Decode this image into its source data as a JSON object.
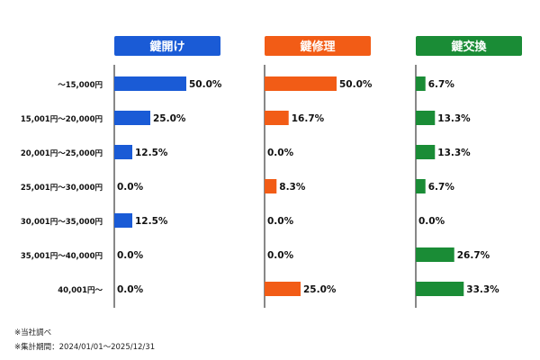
{
  "chart_data": {
    "type": "bar",
    "orientation": "horizontal",
    "categories": [
      "～15,000円",
      "15,001円～20,000円",
      "20,001円～25,000円",
      "25,001円～30,000円",
      "30,001円～35,000円",
      "35,001円～40,000円",
      "40,001円～"
    ],
    "series": [
      {
        "name": "鍵開け",
        "color": "#1a5bd6",
        "values": [
          50.0,
          25.0,
          12.5,
          0.0,
          12.5,
          0.0,
          0.0
        ]
      },
      {
        "name": "鍵修理",
        "color": "#f25c16",
        "values": [
          50.0,
          16.7,
          0.0,
          8.3,
          0.0,
          0.0,
          25.0
        ]
      },
      {
        "name": "鍵交換",
        "color": "#1a8c36",
        "values": [
          6.7,
          13.3,
          13.3,
          6.7,
          0.0,
          26.7,
          33.3
        ]
      }
    ],
    "value_suffix": "%",
    "grid": false
  },
  "notes": [
    "※当社調べ",
    "※集計期間：2024/01/01～2025/12/31"
  ]
}
